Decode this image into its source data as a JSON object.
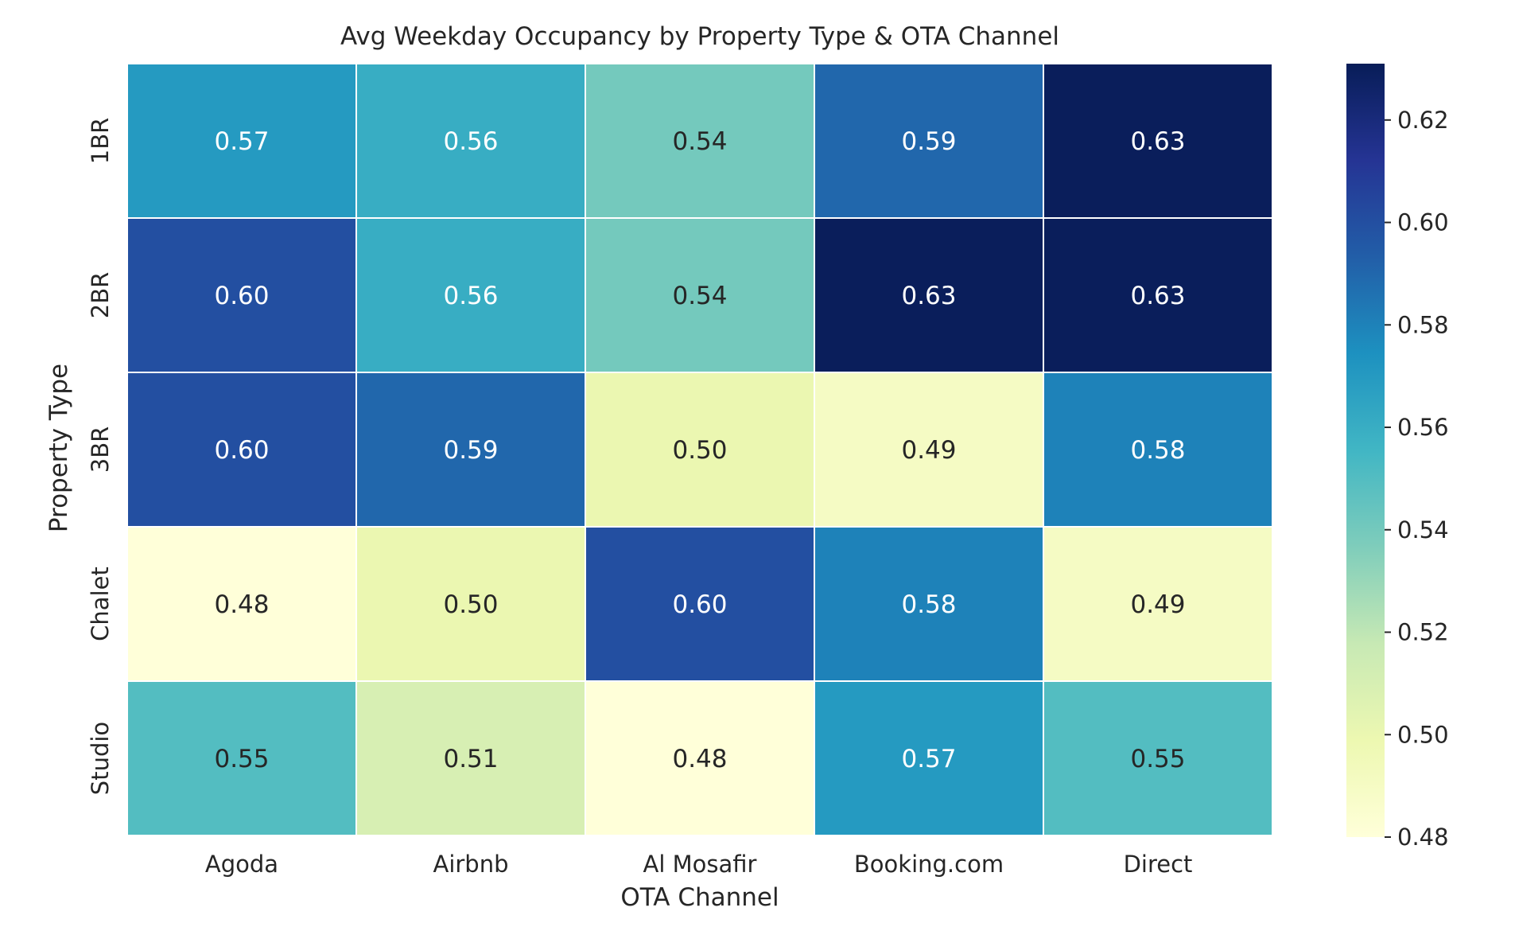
{
  "chart_data": {
    "type": "heatmap",
    "title": "Avg Weekday Occupancy by Property Type & OTA Channel",
    "xlabel": "OTA Channel",
    "ylabel": "Property Type",
    "x_categories": [
      "Agoda",
      "Airbnb",
      "Al Mosafir",
      "Booking.com",
      "Direct"
    ],
    "y_categories": [
      "1BR",
      "2BR",
      "3BR",
      "Chalet",
      "Studio"
    ],
    "values": [
      [
        0.57,
        0.56,
        0.54,
        0.59,
        0.63
      ],
      [
        0.6,
        0.56,
        0.54,
        0.63,
        0.63
      ],
      [
        0.6,
        0.59,
        0.5,
        0.49,
        0.58
      ],
      [
        0.48,
        0.5,
        0.6,
        0.58,
        0.49
      ],
      [
        0.55,
        0.51,
        0.48,
        0.57,
        0.55
      ]
    ],
    "colorbar": {
      "colormap": "YlGnBu",
      "range": [
        0.48,
        0.631
      ],
      "ticks": [
        "0.48",
        "0.50",
        "0.52",
        "0.54",
        "0.56",
        "0.58",
        "0.60",
        "0.62"
      ]
    },
    "annotations": true,
    "grid": false
  }
}
